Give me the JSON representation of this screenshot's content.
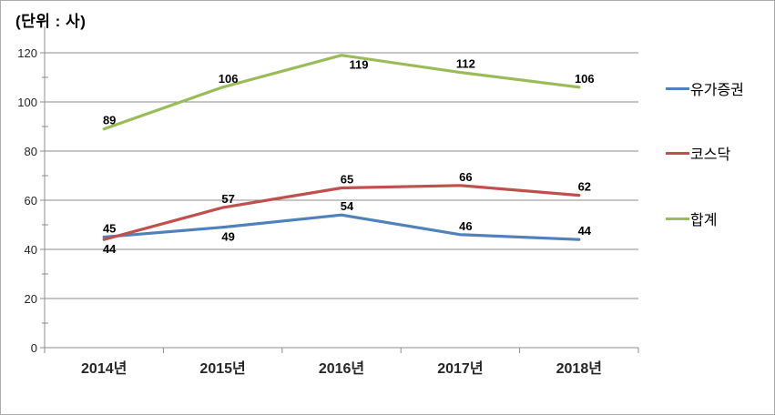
{
  "chart_data": {
    "type": "line",
    "title": "(단위 : 사)",
    "categories": [
      "2014년",
      "2015년",
      "2016년",
      "2017년",
      "2018년"
    ],
    "series": [
      {
        "name": "유가증권",
        "color": "#4F81BD",
        "values": [
          45,
          49,
          54,
          46,
          44
        ],
        "label_positions": [
          "above",
          "below",
          "above",
          "above",
          "above"
        ]
      },
      {
        "name": "코스닥",
        "color": "#C0504D",
        "values": [
          44,
          57,
          65,
          66,
          62
        ],
        "label_positions": [
          "below",
          "above",
          "above",
          "above",
          "above"
        ]
      },
      {
        "name": "합계",
        "color": "#9BBB59",
        "values": [
          89,
          106,
          119,
          112,
          106
        ],
        "label_positions": [
          "above",
          "above",
          "below",
          "above",
          "above"
        ]
      }
    ],
    "xlabel": "",
    "ylabel": "",
    "ylim": [
      0,
      130
    ],
    "y_ticks": [
      0,
      20,
      40,
      60,
      80,
      100,
      120
    ],
    "y_minor_step": 10,
    "grid": true,
    "legend_position": "right",
    "axis_color": "#8c8c8c",
    "label_color": "#000000",
    "tick_text_color": "#262626"
  }
}
